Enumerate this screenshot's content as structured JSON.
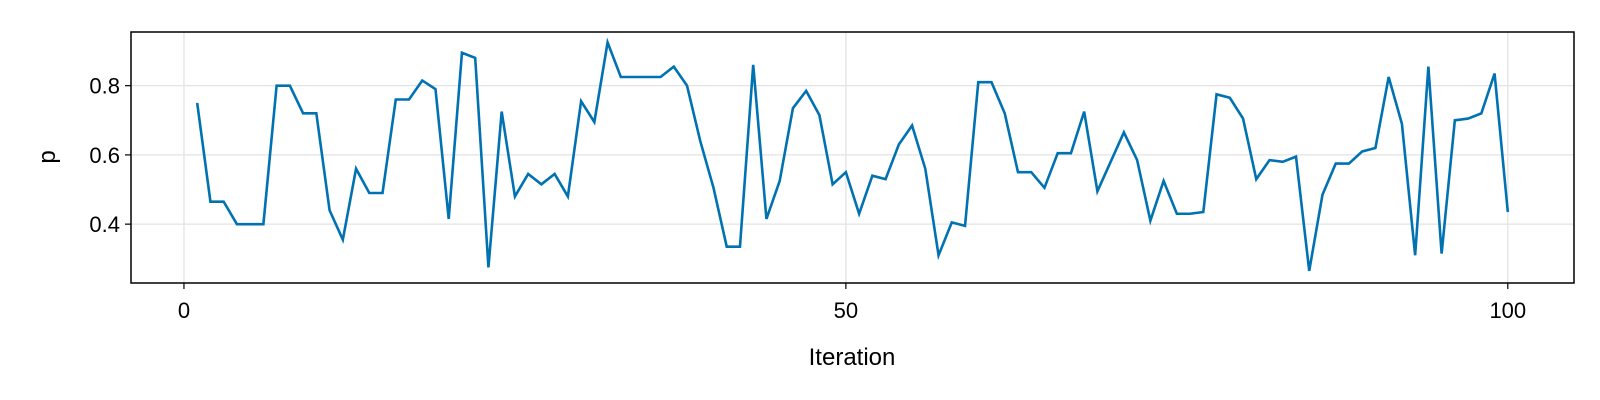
{
  "chart_data": {
    "type": "line",
    "xlabel": "Iteration",
    "ylabel": "p",
    "xlim": [
      -4,
      105
    ],
    "ylim": [
      0.23,
      0.955
    ],
    "xticks": [
      0,
      50,
      100
    ],
    "xtick_labels": [
      "0",
      "50",
      "100"
    ],
    "yticks": [
      0.4,
      0.6,
      0.8
    ],
    "ytick_labels": [
      "0.4",
      "0.6",
      "0.8"
    ],
    "grid": true,
    "legend": "none",
    "series": [
      {
        "color": "#0072b2",
        "x": [
          1,
          2,
          3,
          4,
          5,
          6,
          7,
          8,
          9,
          10,
          11,
          12,
          13,
          14,
          15,
          16,
          17,
          18,
          19,
          20,
          21,
          22,
          23,
          24,
          25,
          26,
          27,
          28,
          29,
          30,
          31,
          32,
          33,
          34,
          35,
          36,
          37,
          38,
          39,
          40,
          41,
          42,
          43,
          44,
          45,
          46,
          47,
          48,
          49,
          50,
          51,
          52,
          53,
          54,
          55,
          56,
          57,
          58,
          59,
          60,
          61,
          62,
          63,
          64,
          65,
          66,
          67,
          68,
          69,
          70,
          71,
          72,
          73,
          74,
          75,
          76,
          77,
          78,
          79,
          80,
          81,
          82,
          83,
          84,
          85,
          86,
          87,
          88,
          89,
          90,
          91,
          92,
          93,
          94,
          95,
          96,
          97,
          98,
          99,
          100
        ],
        "y": [
          0.75,
          0.465,
          0.465,
          0.4,
          0.4,
          0.4,
          0.8,
          0.8,
          0.72,
          0.72,
          0.44,
          0.355,
          0.56,
          0.49,
          0.49,
          0.76,
          0.76,
          0.815,
          0.79,
          0.415,
          0.895,
          0.88,
          0.275,
          0.725,
          0.48,
          0.545,
          0.515,
          0.545,
          0.48,
          0.755,
          0.695,
          0.925,
          0.825,
          0.825,
          0.825,
          0.825,
          0.855,
          0.8,
          0.64,
          0.505,
          0.335,
          0.335,
          0.86,
          0.415,
          0.525,
          0.735,
          0.785,
          0.715,
          0.515,
          0.55,
          0.43,
          0.54,
          0.53,
          0.63,
          0.685,
          0.56,
          0.31,
          0.405,
          0.395,
          0.81,
          0.81,
          0.72,
          0.55,
          0.55,
          0.505,
          0.605,
          0.605,
          0.725,
          0.495,
          0.58,
          0.665,
          0.585,
          0.41,
          0.525,
          0.43,
          0.43,
          0.435,
          0.775,
          0.765,
          0.705,
          0.53,
          0.585,
          0.58,
          0.595,
          0.265,
          0.485,
          0.575,
          0.575,
          0.61,
          0.62,
          0.825,
          0.69,
          0.31,
          0.855,
          0.315,
          0.7,
          0.705,
          0.72,
          0.835,
          0.435
        ]
      }
    ]
  }
}
